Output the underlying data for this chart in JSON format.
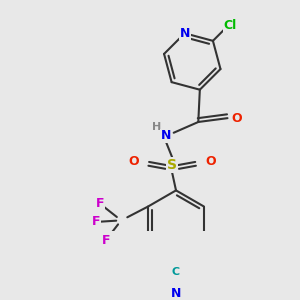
{
  "bg_color": "#e8e8e8",
  "bond_color": "#333333",
  "bond_width": 1.5,
  "atom_colors": {
    "N": "#0000ee",
    "Cl": "#00bb00",
    "O": "#ee2200",
    "S": "#aaaa00",
    "F": "#cc00cc",
    "C": "#009999",
    "H": "#888888"
  },
  "fig_width": 3.0,
  "fig_height": 3.0,
  "dpi": 100
}
